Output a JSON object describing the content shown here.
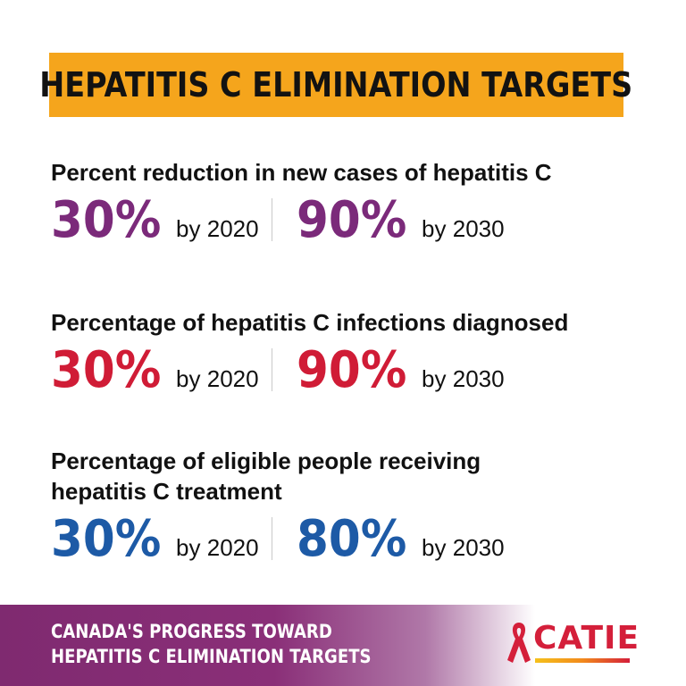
{
  "title": "HEPATITIS C ELIMINATION TARGETS",
  "sections": [
    {
      "title_lines": [
        "Percent reduction in new cases of hepatitis C"
      ],
      "color": "#7b2a7a",
      "stats": [
        {
          "value": "30%",
          "label": "by 2020"
        },
        {
          "value": "90%",
          "label": "by 2030"
        }
      ]
    },
    {
      "title_lines": [
        "Percentage of hepatitis C infections diagnosed"
      ],
      "color": "#d01c36",
      "stats": [
        {
          "value": "30%",
          "label": "by 2020"
        },
        {
          "value": "90%",
          "label": "by 2030"
        }
      ]
    },
    {
      "title_lines": [
        "Percentage of eligible people receiving",
        "hepatitis C treatment"
      ],
      "color": "#1d5aa6",
      "stats": [
        {
          "value": "30%",
          "label": "by 2020"
        },
        {
          "value": "80%",
          "label": "by 2030"
        }
      ]
    }
  ],
  "footer": {
    "lines": [
      "CANADA'S PROGRESS TOWARD",
      "HEPATITIS C ELIMINATION TARGETS"
    ]
  },
  "logo": {
    "text": "CATIE",
    "ribbon_color": "#d41f3a"
  },
  "colors": {
    "title_background": "#f5a51c",
    "footer_purple": "#7f2a70"
  }
}
